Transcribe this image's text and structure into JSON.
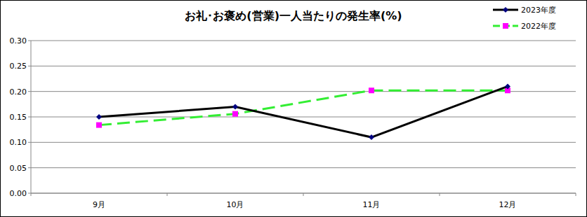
{
  "chart_data": {
    "type": "line",
    "title": "お礼･お褒め(営業)一人当たりの発生率(%)",
    "categories": [
      "9月",
      "10月",
      "11月",
      "12月"
    ],
    "series": [
      {
        "name": "2023年度",
        "color": "#000000",
        "marker": "diamond",
        "line_style": "solid",
        "values": [
          0.15,
          0.17,
          0.11,
          0.21
        ]
      },
      {
        "name": "2022年度",
        "color": "#33ee33",
        "marker": "square",
        "line_style": "dashed",
        "values": [
          0.134,
          0.156,
          0.202,
          0.202
        ]
      }
    ],
    "ylim": [
      0,
      0.3
    ],
    "yticks": [
      {
        "value": 0,
        "label": "0.00"
      },
      {
        "value": 0.05,
        "label": "0.05"
      },
      {
        "value": 0.1,
        "label": "0.10"
      },
      {
        "value": 0.15,
        "label": "0.15"
      },
      {
        "value": 0.2,
        "label": "0.20"
      },
      {
        "value": 0.25,
        "label": "0.25"
      },
      {
        "value": 0.3,
        "label": "0.30"
      }
    ],
    "grid": true,
    "legend": "top-right"
  }
}
